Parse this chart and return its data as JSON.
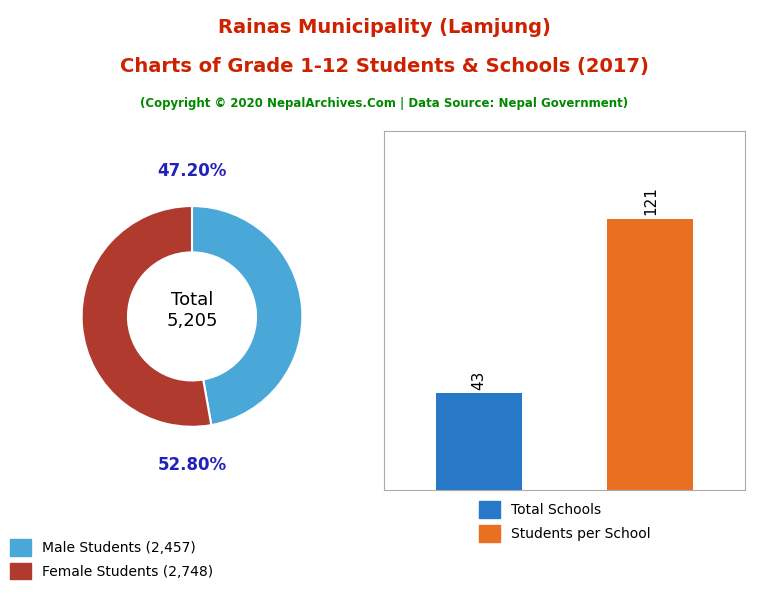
{
  "title_line1": "Rainas Municipality (Lamjung)",
  "title_line2": "Charts of Grade 1-12 Students & Schools (2017)",
  "subtitle": "(Copyright © 2020 NepalArchives.Com | Data Source: Nepal Government)",
  "title_color": "#cc2200",
  "subtitle_color": "#008800",
  "donut_values": [
    2457,
    2748
  ],
  "donut_colors": [
    "#4aa8d8",
    "#b03a2e"
  ],
  "donut_labels": [
    "47.20%",
    "52.80%"
  ],
  "donut_label_color": "#2222bb",
  "donut_center_text": "Total\n5,205",
  "legend_labels": [
    "Male Students (2,457)",
    "Female Students (2,748)"
  ],
  "bar_values": [
    43,
    121
  ],
  "bar_colors": [
    "#2878c8",
    "#e87020"
  ],
  "bar_labels": [
    "43",
    "121"
  ],
  "bar_legend_labels": [
    "Total Schools",
    "Students per School"
  ],
  "background_color": "#ffffff"
}
